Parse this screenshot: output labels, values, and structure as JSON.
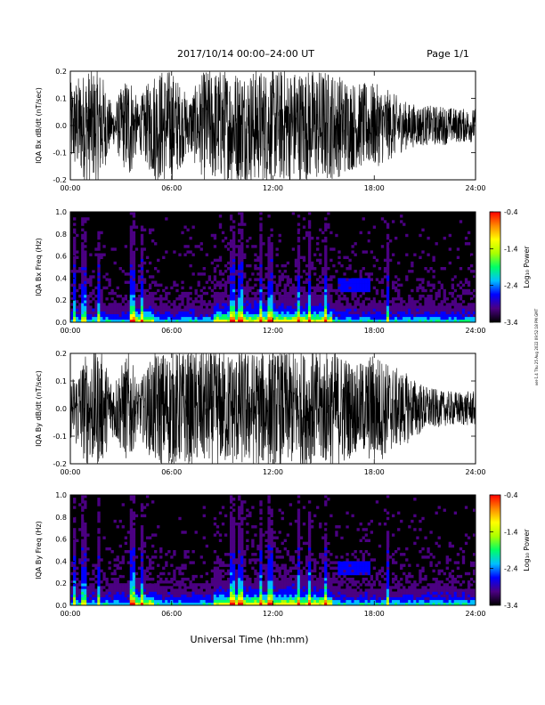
{
  "header": {
    "title": "2017/10/14  00:00–24:00 UT",
    "page": "Page 1/1"
  },
  "footer": {
    "xlabel": "Universal Time (hh:mm)"
  },
  "side_note": "ver-1.4 Thu 25 Aug 2022 09:52:18 PM GMT",
  "time_ticks": [
    "00:00",
    "06:00",
    "12:00",
    "18:00",
    "24:00"
  ],
  "colorbar": {
    "label": "Log₁₀ Power",
    "ticks": [
      "-0.4",
      "-1.4",
      "-2.4",
      "-3.4"
    ],
    "range": [
      -3.4,
      -0.4
    ],
    "colors": [
      "#000000",
      "#4b0082",
      "#0000ff",
      "#00bfff",
      "#00ff66",
      "#aaff00",
      "#ffff00",
      "#ff8800",
      "#ff0000"
    ]
  },
  "chart_data": [
    {
      "type": "line",
      "title": "",
      "xlabel": "",
      "ylabel": "IQA Bx dB/dt (nT/sec)",
      "xlim": [
        0,
        24
      ],
      "ylim": [
        -0.2,
        0.2
      ],
      "y_ticks": [
        "0.2",
        "0.1",
        "0.0",
        "-0.1",
        "-0.2"
      ],
      "grid": false,
      "x": [
        0,
        1,
        1.5,
        1.8,
        2.5,
        3.5,
        4,
        5,
        6,
        7,
        8,
        9,
        10,
        11,
        12,
        13,
        14,
        15,
        16,
        17,
        18,
        19,
        20,
        21,
        22,
        23,
        24
      ],
      "amplitude": [
        0.15,
        0.2,
        0.2,
        0.2,
        0.06,
        0.2,
        0.08,
        0.2,
        0.2,
        0.1,
        0.2,
        0.2,
        0.2,
        0.2,
        0.2,
        0.2,
        0.2,
        0.2,
        0.18,
        0.15,
        0.15,
        0.12,
        0.08,
        0.07,
        0.07,
        0.06,
        0.06
      ]
    },
    {
      "type": "heatmap",
      "title": "",
      "xlabel": "",
      "ylabel": "IQA Bx Freq (Hz)",
      "xlim": [
        0,
        24
      ],
      "ylim": [
        0.0,
        1.0
      ],
      "y_ticks": [
        "1.0",
        "0.8",
        "0.6",
        "0.4",
        "0.2",
        "0.0"
      ],
      "z_range": [
        -3.4,
        -0.4
      ],
      "vertical_streaks_hours": [
        0.2,
        0.8,
        1.7,
        3.7,
        4.2,
        9.6,
        10.1,
        11.3,
        11.8,
        13.5,
        14.2,
        15.1,
        18.8
      ],
      "enhanced_region": {
        "time_hours": [
          15.8,
          17.8
        ],
        "freq_hz": [
          0.28,
          0.4
        ]
      }
    },
    {
      "type": "line",
      "title": "",
      "xlabel": "",
      "ylabel": "IQA By dB/dt (nT/sec)",
      "xlim": [
        0,
        24
      ],
      "ylim": [
        -0.2,
        0.2
      ],
      "y_ticks": [
        "0.2",
        "0.1",
        "0.0",
        "-0.1",
        "-0.2"
      ],
      "grid": false,
      "x": [
        0,
        1,
        1.5,
        1.8,
        2.5,
        3.5,
        4,
        5,
        6,
        7,
        8,
        9,
        10,
        11,
        12,
        13,
        14,
        15,
        16,
        17,
        18,
        19,
        20,
        21,
        22,
        23,
        24
      ],
      "amplitude": [
        0.1,
        0.2,
        0.2,
        0.2,
        0.1,
        0.2,
        0.08,
        0.2,
        0.2,
        0.2,
        0.2,
        0.2,
        0.2,
        0.2,
        0.2,
        0.2,
        0.2,
        0.2,
        0.2,
        0.15,
        0.2,
        0.15,
        0.12,
        0.08,
        0.06,
        0.06,
        0.06
      ]
    },
    {
      "type": "heatmap",
      "title": "",
      "xlabel": "Universal Time (hh:mm)",
      "ylabel": "IQA By Freq (Hz)",
      "xlim": [
        0,
        24
      ],
      "ylim": [
        0.0,
        1.0
      ],
      "y_ticks": [
        "1.0",
        "0.8",
        "0.6",
        "0.4",
        "0.2",
        "0.0"
      ],
      "z_range": [
        -3.4,
        -0.4
      ],
      "vertical_streaks_hours": [
        0.2,
        0.8,
        1.7,
        3.7,
        4.2,
        9.6,
        10.1,
        11.3,
        11.8,
        13.5,
        14.2,
        15.1,
        18.8
      ],
      "enhanced_region": {
        "time_hours": [
          15.8,
          17.8
        ],
        "freq_hz": [
          0.28,
          0.4
        ]
      }
    }
  ]
}
